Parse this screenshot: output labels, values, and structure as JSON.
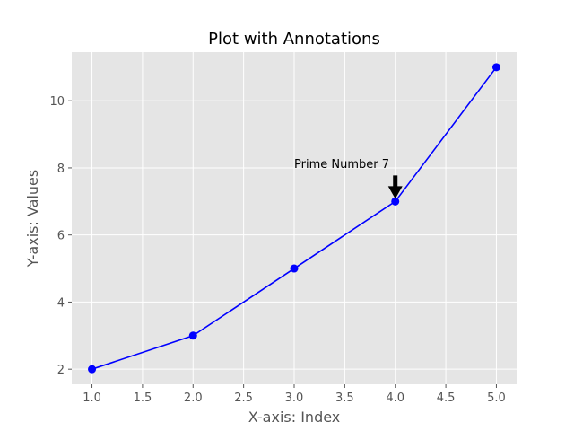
{
  "chart_data": {
    "type": "line",
    "title": "Plot with Annotations",
    "xlabel": "X-axis: Index",
    "ylabel": "Y-axis: Values",
    "x": [
      1,
      2,
      3,
      4,
      5
    ],
    "y": [
      2,
      3,
      5,
      7,
      11
    ],
    "xlim": [
      0.8,
      5.2
    ],
    "ylim": [
      1.55,
      11.45
    ],
    "xticks": [
      "1.0",
      "1.5",
      "2.0",
      "2.5",
      "3.0",
      "3.5",
      "4.0",
      "4.5",
      "5.0"
    ],
    "xtick_values": [
      1.0,
      1.5,
      2.0,
      2.5,
      3.0,
      3.5,
      4.0,
      4.5,
      5.0
    ],
    "yticks": [
      "2",
      "4",
      "6",
      "8",
      "10"
    ],
    "ytick_values": [
      2,
      4,
      6,
      8,
      10
    ],
    "grid": true,
    "annotation": {
      "text": "Prime Number 7",
      "point": [
        4,
        7
      ],
      "text_xy": [
        3,
        8
      ]
    },
    "colors": {
      "background": "#e5e5e5",
      "line": "#0000ff",
      "grid": "#ffffff",
      "arrow": "#000000"
    }
  }
}
